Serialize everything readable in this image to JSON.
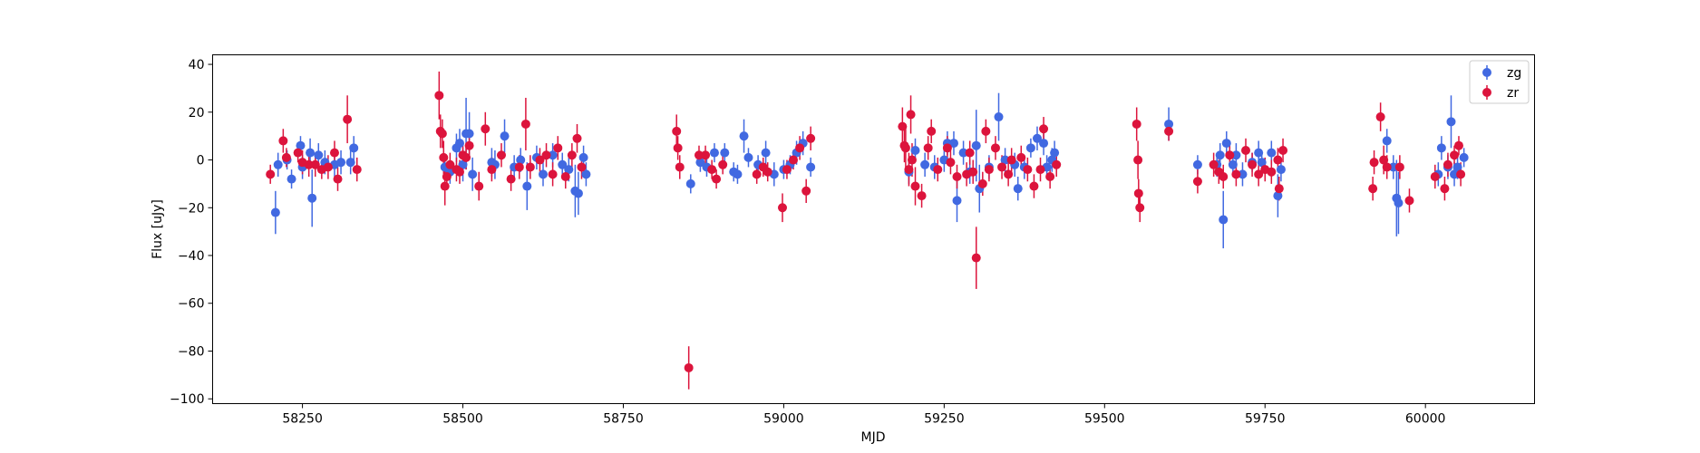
{
  "chart_data": {
    "type": "scatter",
    "title": "",
    "xlabel": "MJD",
    "ylabel": "Flux [uJy]",
    "xlim": [
      58110,
      60170
    ],
    "ylim": [
      -102,
      44
    ],
    "xticks": [
      58250,
      58500,
      58750,
      59000,
      59250,
      59500,
      59750,
      60000
    ],
    "yticks": [
      -100,
      -80,
      -60,
      -40,
      -20,
      0,
      20,
      40
    ],
    "grid": false,
    "legend_position": "top-right",
    "series": [
      {
        "name": "zg",
        "color": "#4169e1",
        "marker": "circle",
        "error_bars": true,
        "points": [
          [
            58208,
            -22,
            9
          ],
          [
            58212,
            -2,
            5
          ],
          [
            58226,
            0,
            4
          ],
          [
            58233,
            -8,
            4
          ],
          [
            58247,
            6,
            4
          ],
          [
            58250,
            -3,
            5
          ],
          [
            58262,
            3,
            6
          ],
          [
            58265,
            -16,
            12
          ],
          [
            58275,
            2,
            5
          ],
          [
            58285,
            -1,
            5
          ],
          [
            58300,
            -2,
            5
          ],
          [
            58310,
            -1,
            5
          ],
          [
            58325,
            -1,
            5
          ],
          [
            58330,
            5,
            5
          ],
          [
            58472,
            -3,
            5
          ],
          [
            58480,
            -5,
            5
          ],
          [
            58490,
            5,
            6
          ],
          [
            58495,
            7,
            6
          ],
          [
            58500,
            -2,
            7
          ],
          [
            58505,
            11,
            15
          ],
          [
            58510,
            11,
            9
          ],
          [
            58515,
            -6,
            7
          ],
          [
            58545,
            -1,
            6
          ],
          [
            58550,
            -2,
            6
          ],
          [
            58565,
            10,
            7
          ],
          [
            58580,
            -3,
            5
          ],
          [
            58590,
            0,
            5
          ],
          [
            58600,
            -11,
            10
          ],
          [
            58615,
            1,
            5
          ],
          [
            58625,
            -6,
            5
          ],
          [
            58640,
            2,
            5
          ],
          [
            58655,
            -2,
            5
          ],
          [
            58665,
            -4,
            5
          ],
          [
            58675,
            -13,
            11
          ],
          [
            58680,
            -14,
            9
          ],
          [
            58688,
            1,
            5
          ],
          [
            58692,
            -6,
            5
          ],
          [
            58855,
            -10,
            4
          ],
          [
            58870,
            -1,
            4
          ],
          [
            58880,
            -3,
            4
          ],
          [
            58892,
            3,
            4
          ],
          [
            58908,
            3,
            4
          ],
          [
            58922,
            -5,
            4
          ],
          [
            58928,
            -6,
            4
          ],
          [
            58938,
            10,
            7
          ],
          [
            58945,
            1,
            4
          ],
          [
            58960,
            -2,
            4
          ],
          [
            58972,
            3,
            5
          ],
          [
            58985,
            -6,
            5
          ],
          [
            59000,
            -4,
            4
          ],
          [
            59010,
            -2,
            4
          ],
          [
            59020,
            3,
            5
          ],
          [
            59030,
            7,
            5
          ],
          [
            59042,
            -3,
            4
          ],
          [
            59195,
            -5,
            5
          ],
          [
            59205,
            4,
            5
          ],
          [
            59220,
            -2,
            5
          ],
          [
            59235,
            -3,
            5
          ],
          [
            59250,
            0,
            5
          ],
          [
            59255,
            7,
            5
          ],
          [
            59265,
            7,
            5
          ],
          [
            59270,
            -17,
            9
          ],
          [
            59280,
            3,
            5
          ],
          [
            59290,
            -5,
            5
          ],
          [
            59300,
            6,
            15
          ],
          [
            59305,
            -12,
            10
          ],
          [
            59320,
            -3,
            5
          ],
          [
            59335,
            18,
            10
          ],
          [
            59345,
            0,
            5
          ],
          [
            59360,
            -2,
            5
          ],
          [
            59365,
            -12,
            5
          ],
          [
            59375,
            -3,
            5
          ],
          [
            59385,
            5,
            4
          ],
          [
            59395,
            9,
            5
          ],
          [
            59405,
            7,
            5
          ],
          [
            59410,
            -3,
            5
          ],
          [
            59418,
            0,
            5
          ],
          [
            59422,
            3,
            5
          ],
          [
            59600,
            15,
            7
          ],
          [
            59645,
            -2,
            4
          ],
          [
            59675,
            -2,
            5
          ],
          [
            59680,
            2,
            5
          ],
          [
            59685,
            -25,
            12
          ],
          [
            59690,
            7,
            5
          ],
          [
            59700,
            -2,
            5
          ],
          [
            59705,
            2,
            5
          ],
          [
            59715,
            -6,
            5
          ],
          [
            59730,
            -1,
            4
          ],
          [
            59740,
            3,
            5
          ],
          [
            59745,
            -1,
            5
          ],
          [
            59760,
            3,
            5
          ],
          [
            59770,
            -15,
            9
          ],
          [
            59775,
            -4,
            5
          ],
          [
            60020,
            -6,
            5
          ],
          [
            60025,
            5,
            5
          ],
          [
            60035,
            -3,
            5
          ],
          [
            60040,
            16,
            11
          ],
          [
            60045,
            -6,
            5
          ],
          [
            60050,
            -3,
            5
          ],
          [
            59940,
            8,
            5
          ],
          [
            59950,
            -3,
            5
          ],
          [
            59955,
            -16,
            16
          ],
          [
            59958,
            -18,
            13
          ],
          [
            60060,
            1,
            4
          ]
        ]
      },
      {
        "name": "zr",
        "color": "#dc143c",
        "marker": "circle",
        "error_bars": true,
        "points": [
          [
            58200,
            -6,
            4
          ],
          [
            58220,
            8,
            5
          ],
          [
            58225,
            1,
            4
          ],
          [
            58243,
            3,
            4
          ],
          [
            58250,
            -1,
            5
          ],
          [
            58260,
            -2,
            5
          ],
          [
            58270,
            -2,
            5
          ],
          [
            58280,
            -4,
            4
          ],
          [
            58290,
            -3,
            5
          ],
          [
            58300,
            3,
            5
          ],
          [
            58305,
            -8,
            5
          ],
          [
            58320,
            17,
            10
          ],
          [
            58335,
            -4,
            5
          ],
          [
            58463,
            27,
            10
          ],
          [
            58465,
            12,
            7
          ],
          [
            58468,
            11,
            6
          ],
          [
            58470,
            1,
            7
          ],
          [
            58472,
            -11,
            8
          ],
          [
            58475,
            -7,
            5
          ],
          [
            58480,
            -2,
            5
          ],
          [
            58490,
            -4,
            5
          ],
          [
            58495,
            -5,
            5
          ],
          [
            58500,
            2,
            5
          ],
          [
            58505,
            1,
            5
          ],
          [
            58510,
            6,
            6
          ],
          [
            58525,
            -11,
            6
          ],
          [
            58535,
            13,
            7
          ],
          [
            58545,
            -4,
            5
          ],
          [
            58560,
            2,
            5
          ],
          [
            58575,
            -8,
            5
          ],
          [
            58588,
            -3,
            5
          ],
          [
            58598,
            15,
            11
          ],
          [
            58605,
            -3,
            5
          ],
          [
            58620,
            0,
            5
          ],
          [
            58630,
            2,
            5
          ],
          [
            58640,
            -6,
            5
          ],
          [
            58648,
            5,
            5
          ],
          [
            58660,
            -7,
            5
          ],
          [
            58670,
            2,
            5
          ],
          [
            58678,
            9,
            6
          ],
          [
            58685,
            -3,
            5
          ],
          [
            58833,
            12,
            7
          ],
          [
            58835,
            5,
            5
          ],
          [
            58838,
            -3,
            5
          ],
          [
            58852,
            -87,
            9
          ],
          [
            58868,
            2,
            4
          ],
          [
            58878,
            2,
            4
          ],
          [
            58888,
            -4,
            4
          ],
          [
            58895,
            -8,
            4
          ],
          [
            58905,
            -2,
            4
          ],
          [
            58958,
            -6,
            4
          ],
          [
            58968,
            -3,
            4
          ],
          [
            58975,
            -5,
            4
          ],
          [
            58998,
            -20,
            6
          ],
          [
            59005,
            -4,
            4
          ],
          [
            59015,
            0,
            4
          ],
          [
            59025,
            5,
            5
          ],
          [
            59035,
            -13,
            5
          ],
          [
            59042,
            9,
            5
          ],
          [
            59185,
            14,
            8
          ],
          [
            59188,
            6,
            7
          ],
          [
            59190,
            5,
            8
          ],
          [
            59195,
            -4,
            7
          ],
          [
            59198,
            19,
            8
          ],
          [
            59200,
            0,
            7
          ],
          [
            59205,
            -11,
            8
          ],
          [
            59215,
            -15,
            5
          ],
          [
            59225,
            5,
            5
          ],
          [
            59230,
            12,
            5
          ],
          [
            59240,
            -4,
            5
          ],
          [
            59255,
            5,
            5
          ],
          [
            59260,
            -1,
            5
          ],
          [
            59270,
            -7,
            5
          ],
          [
            59285,
            -6,
            5
          ],
          [
            59290,
            3,
            5
          ],
          [
            59295,
            -5,
            5
          ],
          [
            59300,
            -41,
            13
          ],
          [
            59310,
            -10,
            5
          ],
          [
            59315,
            12,
            5
          ],
          [
            59320,
            -4,
            5
          ],
          [
            59330,
            5,
            5
          ],
          [
            59340,
            -3,
            5
          ],
          [
            59350,
            -6,
            5
          ],
          [
            59355,
            0,
            5
          ],
          [
            59370,
            1,
            5
          ],
          [
            59380,
            -4,
            5
          ],
          [
            59390,
            -11,
            5
          ],
          [
            59400,
            -4,
            5
          ],
          [
            59405,
            13,
            5
          ],
          [
            59415,
            -7,
            5
          ],
          [
            59425,
            -2,
            5
          ],
          [
            59550,
            15,
            7
          ],
          [
            59552,
            0,
            8
          ],
          [
            59553,
            -14,
            6
          ],
          [
            59555,
            -20,
            6
          ],
          [
            59600,
            12,
            4
          ],
          [
            59645,
            -9,
            5
          ],
          [
            59670,
            -2,
            5
          ],
          [
            59678,
            -5,
            5
          ],
          [
            59685,
            -7,
            5
          ],
          [
            59695,
            2,
            5
          ],
          [
            59705,
            -6,
            5
          ],
          [
            59720,
            4,
            5
          ],
          [
            59730,
            -2,
            5
          ],
          [
            59740,
            -6,
            5
          ],
          [
            59750,
            -4,
            5
          ],
          [
            59760,
            -5,
            5
          ],
          [
            59770,
            0,
            5
          ],
          [
            59772,
            -12,
            5
          ],
          [
            59778,
            4,
            5
          ],
          [
            59918,
            -12,
            5
          ],
          [
            59920,
            -1,
            5
          ],
          [
            59930,
            18,
            6
          ],
          [
            59935,
            0,
            6
          ],
          [
            59940,
            -3,
            5
          ],
          [
            59960,
            -3,
            5
          ],
          [
            59975,
            -17,
            5
          ],
          [
            60015,
            -7,
            5
          ],
          [
            60030,
            -12,
            5
          ],
          [
            60035,
            -2,
            5
          ],
          [
            60045,
            2,
            4
          ],
          [
            60052,
            6,
            4
          ],
          [
            60055,
            -6,
            5
          ]
        ]
      }
    ]
  }
}
